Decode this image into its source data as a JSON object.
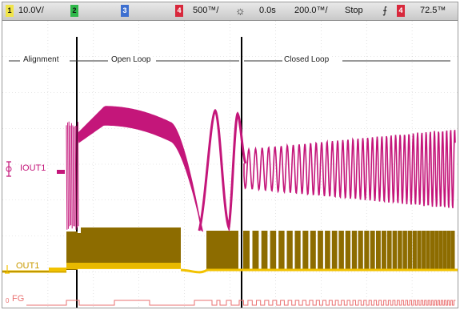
{
  "status_bar": {
    "ch1_badge": "1",
    "ch1_scale": "10.0V/",
    "ch2_badge": "2",
    "ch3_badge": "3",
    "ch4_badge": "4",
    "ch4_scale": "500™/",
    "trigger_symbol": "☼",
    "time_offset": "0.0s",
    "time_scale": "200.0™/",
    "run_state": "Stop",
    "trigger_edge": "⨍",
    "trigger_source_badge": "4",
    "trigger_level": "72.5™"
  },
  "segments": {
    "alignment": "Alignment",
    "open_loop": "Open Loop",
    "closed_loop": "Closed Loop"
  },
  "channel_labels": {
    "iout1": "IOUT1",
    "out1": "OUT1",
    "fg": "FG",
    "fg_prefix": "0"
  },
  "colors": {
    "ch1": "#c4007a",
    "ch2": "#b98a00",
    "ch3": "#3d6fd0",
    "ch4": "#d8283c",
    "iout": "#c4167a",
    "out": "#8d6c00",
    "out_edge": "#f2c200",
    "fg": "#e97070",
    "grid": "#cfcfcf"
  }
}
